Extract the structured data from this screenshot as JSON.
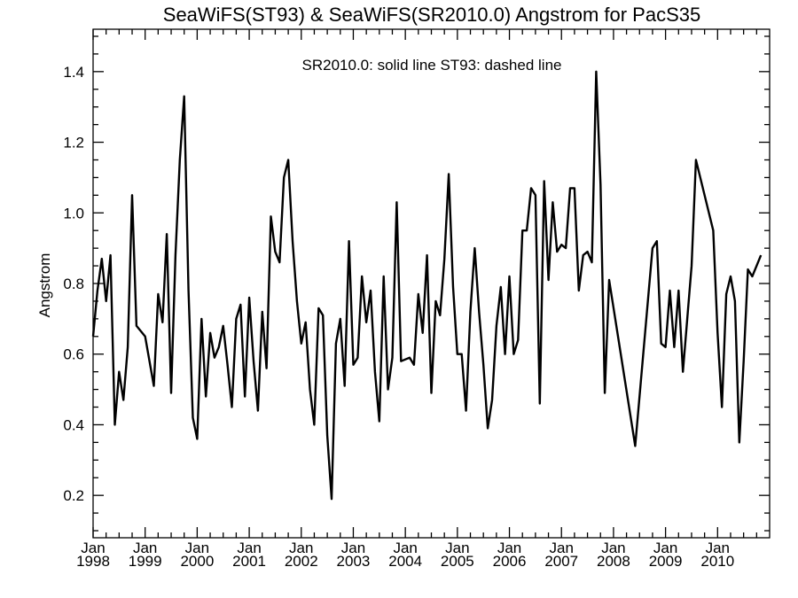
{
  "chart_data": {
    "type": "line",
    "title": "SeaWiFS(ST93) & SeaWiFS(SR2010.0)  Angstrom for PacS35",
    "annotation": "SR2010.0: solid line   ST93: dashed line",
    "xlabel": "",
    "ylabel": "Angstrom",
    "xlim": [
      "1998-01",
      "2011-01"
    ],
    "ylim": [
      0.08,
      1.52
    ],
    "yticks": [
      0.2,
      0.4,
      0.6,
      0.8,
      1.0,
      1.2,
      1.4
    ],
    "ytick_labels": [
      "0.2",
      "0.4",
      "0.6",
      "0.8",
      "1.0",
      "1.2",
      "1.4"
    ],
    "xticks": [
      {
        "month": "Jan",
        "year": "1998",
        "date": "1998-01"
      },
      {
        "month": "Jan",
        "year": "1999",
        "date": "1999-01"
      },
      {
        "month": "Jan",
        "year": "2000",
        "date": "2000-01"
      },
      {
        "month": "Jan",
        "year": "2001",
        "date": "2001-01"
      },
      {
        "month": "Jan",
        "year": "2002",
        "date": "2002-01"
      },
      {
        "month": "Jan",
        "year": "2003",
        "date": "2003-01"
      },
      {
        "month": "Jan",
        "year": "2004",
        "date": "2004-01"
      },
      {
        "month": "Jan",
        "year": "2005",
        "date": "2005-01"
      },
      {
        "month": "Jan",
        "year": "2006",
        "date": "2006-01"
      },
      {
        "month": "Jan",
        "year": "2007",
        "date": "2007-01"
      },
      {
        "month": "Jan",
        "year": "2008",
        "date": "2008-01"
      },
      {
        "month": "Jan",
        "year": "2009",
        "date": "2009-01"
      },
      {
        "month": "Jan",
        "year": "2010",
        "date": "2010-01"
      }
    ],
    "minor_ticks_per_major": 4,
    "grid": false,
    "series": [
      {
        "style": "solid",
        "points": [
          [
            "1998-01",
            0.65
          ],
          [
            "1998-02",
            0.78
          ],
          [
            "1998-03",
            0.87
          ],
          [
            "1998-04",
            0.75
          ],
          [
            "1998-05",
            0.88
          ],
          [
            "1998-06",
            0.4
          ],
          [
            "1998-07",
            0.55
          ],
          [
            "1998-08",
            0.47
          ],
          [
            "1998-09",
            0.62
          ],
          [
            "1998-10",
            1.05
          ],
          [
            "1998-11",
            0.68
          ],
          [
            "1999-01",
            0.65
          ],
          [
            "1999-03",
            0.51
          ],
          [
            "1999-04",
            0.77
          ],
          [
            "1999-05",
            0.69
          ],
          [
            "1999-06",
            0.94
          ],
          [
            "1999-07",
            0.49
          ],
          [
            "1999-08",
            0.88
          ],
          [
            "1999-09",
            1.15
          ],
          [
            "1999-10",
            1.33
          ],
          [
            "1999-11",
            0.78
          ],
          [
            "1999-12",
            0.42
          ],
          [
            "2000-01",
            0.36
          ],
          [
            "2000-02",
            0.7
          ],
          [
            "2000-03",
            0.48
          ],
          [
            "2000-04",
            0.66
          ],
          [
            "2000-05",
            0.59
          ],
          [
            "2000-06",
            0.62
          ],
          [
            "2000-07",
            0.68
          ],
          [
            "2000-08",
            0.57
          ],
          [
            "2000-09",
            0.45
          ],
          [
            "2000-10",
            0.7
          ],
          [
            "2000-11",
            0.74
          ],
          [
            "2000-12",
            0.48
          ],
          [
            "2001-01",
            0.76
          ],
          [
            "2001-02",
            0.58
          ],
          [
            "2001-03",
            0.44
          ],
          [
            "2001-04",
            0.72
          ],
          [
            "2001-05",
            0.56
          ],
          [
            "2001-06",
            0.99
          ],
          [
            "2001-07",
            0.89
          ],
          [
            "2001-08",
            0.86
          ],
          [
            "2001-09",
            1.1
          ],
          [
            "2001-10",
            1.15
          ],
          [
            "2001-11",
            0.92
          ],
          [
            "2001-12",
            0.75
          ],
          [
            "2002-01",
            0.63
          ],
          [
            "2002-02",
            0.69
          ],
          [
            "2002-03",
            0.5
          ],
          [
            "2002-04",
            0.4
          ],
          [
            "2002-05",
            0.73
          ],
          [
            "2002-06",
            0.71
          ],
          [
            "2002-07",
            0.37
          ],
          [
            "2002-08",
            0.19
          ],
          [
            "2002-09",
            0.63
          ],
          [
            "2002-10",
            0.7
          ],
          [
            "2002-11",
            0.51
          ],
          [
            "2002-12",
            0.92
          ],
          [
            "2003-01",
            0.57
          ],
          [
            "2003-02",
            0.59
          ],
          [
            "2003-03",
            0.82
          ],
          [
            "2003-04",
            0.69
          ],
          [
            "2003-05",
            0.78
          ],
          [
            "2003-06",
            0.55
          ],
          [
            "2003-07",
            0.41
          ],
          [
            "2003-08",
            0.82
          ],
          [
            "2003-09",
            0.5
          ],
          [
            "2003-10",
            0.59
          ],
          [
            "2003-11",
            1.03
          ],
          [
            "2003-12",
            0.58
          ],
          [
            "2004-02",
            0.59
          ],
          [
            "2004-03",
            0.57
          ],
          [
            "2004-04",
            0.77
          ],
          [
            "2004-05",
            0.66
          ],
          [
            "2004-06",
            0.88
          ],
          [
            "2004-07",
            0.49
          ],
          [
            "2004-08",
            0.75
          ],
          [
            "2004-09",
            0.71
          ],
          [
            "2004-10",
            0.87
          ],
          [
            "2004-11",
            1.11
          ],
          [
            "2004-12",
            0.79
          ],
          [
            "2005-01",
            0.6
          ],
          [
            "2005-02",
            0.6
          ],
          [
            "2005-03",
            0.44
          ],
          [
            "2005-04",
            0.72
          ],
          [
            "2005-05",
            0.9
          ],
          [
            "2005-06",
            0.72
          ],
          [
            "2005-07",
            0.57
          ],
          [
            "2005-08",
            0.39
          ],
          [
            "2005-09",
            0.47
          ],
          [
            "2005-10",
            0.68
          ],
          [
            "2005-11",
            0.79
          ],
          [
            "2005-12",
            0.6
          ],
          [
            "2006-01",
            0.82
          ],
          [
            "2006-02",
            0.6
          ],
          [
            "2006-03",
            0.64
          ],
          [
            "2006-04",
            0.95
          ],
          [
            "2006-05",
            0.95
          ],
          [
            "2006-06",
            1.07
          ],
          [
            "2006-07",
            1.05
          ],
          [
            "2006-08",
            0.46
          ],
          [
            "2006-09",
            1.09
          ],
          [
            "2006-10",
            0.81
          ],
          [
            "2006-11",
            1.03
          ],
          [
            "2006-12",
            0.89
          ],
          [
            "2007-01",
            0.91
          ],
          [
            "2007-02",
            0.9
          ],
          [
            "2007-03",
            1.07
          ],
          [
            "2007-04",
            1.07
          ],
          [
            "2007-05",
            0.78
          ],
          [
            "2007-06",
            0.88
          ],
          [
            "2007-07",
            0.89
          ],
          [
            "2007-08",
            0.86
          ],
          [
            "2007-09",
            1.4
          ],
          [
            "2007-10",
            1.08
          ],
          [
            "2007-11",
            0.49
          ],
          [
            "2007-12",
            0.81
          ],
          [
            "2008-06",
            0.34
          ],
          [
            "2008-10",
            0.9
          ],
          [
            "2008-11",
            0.92
          ],
          [
            "2008-12",
            0.63
          ],
          [
            "2009-01",
            0.62
          ],
          [
            "2009-02",
            0.78
          ],
          [
            "2009-03",
            0.62
          ],
          [
            "2009-04",
            0.78
          ],
          [
            "2009-05",
            0.55
          ],
          [
            "2009-06",
            0.7
          ],
          [
            "2009-07",
            0.85
          ],
          [
            "2009-08",
            1.15
          ],
          [
            "2009-12",
            0.95
          ],
          [
            "2010-01",
            0.66
          ],
          [
            "2010-02",
            0.45
          ],
          [
            "2010-03",
            0.77
          ],
          [
            "2010-04",
            0.82
          ],
          [
            "2010-05",
            0.75
          ],
          [
            "2010-06",
            0.35
          ],
          [
            "2010-07",
            0.58
          ],
          [
            "2010-08",
            0.84
          ],
          [
            "2010-09",
            0.82
          ],
          [
            "2010-10",
            0.85
          ],
          [
            "2010-11",
            0.88
          ]
        ]
      }
    ]
  }
}
